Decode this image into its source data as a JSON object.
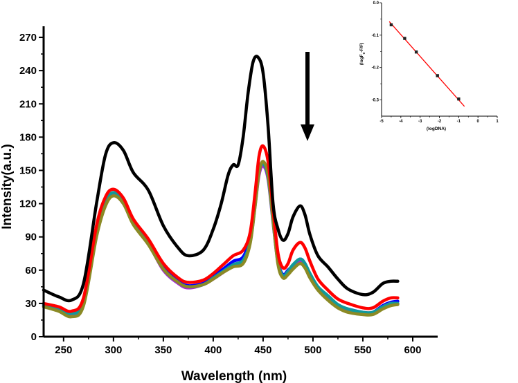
{
  "chart_data": [
    {
      "type": "line",
      "title": "",
      "xlabel": "Wavelength (nm)",
      "ylabel": "Intensity(a.u.)",
      "xlim": [
        230,
        625
      ],
      "ylim": [
        0,
        280
      ],
      "xticks": [
        250,
        300,
        350,
        400,
        450,
        500,
        550,
        600
      ],
      "yticks": [
        0,
        30,
        60,
        90,
        120,
        150,
        180,
        210,
        240,
        270
      ],
      "grid": false,
      "legend": "none",
      "annotation": "downward arrow near 490 nm indicating decreasing intensity",
      "series": [
        {
          "name": "black",
          "color": "#000000",
          "x": [
            230,
            245,
            258,
            270,
            283,
            292,
            300,
            310,
            320,
            335,
            350,
            365,
            375,
            390,
            400,
            408,
            415,
            420,
            425,
            430,
            435,
            440,
            445,
            450,
            455,
            460,
            465,
            470,
            475,
            480,
            487,
            492,
            497,
            505,
            515,
            525,
            535,
            550,
            560,
            570,
            578,
            585
          ],
          "y": [
            42,
            36,
            33,
            48,
            120,
            164,
            175,
            168,
            148,
            132,
            100,
            80,
            73,
            78,
            97,
            120,
            146,
            155,
            155,
            180,
            220,
            248,
            252,
            238,
            190,
            120,
            97,
            87,
            93,
            108,
            118,
            110,
            92,
            73,
            63,
            52,
            43,
            38,
            40,
            48,
            50,
            50
          ]
        },
        {
          "name": "red",
          "color": "#ff0000",
          "x": [
            230,
            245,
            258,
            270,
            283,
            292,
            300,
            310,
            320,
            335,
            350,
            365,
            375,
            390,
            400,
            410,
            420,
            430,
            437,
            442,
            446,
            450,
            455,
            460,
            465,
            470,
            475,
            480,
            487,
            492,
            497,
            505,
            515,
            525,
            535,
            550,
            560,
            570,
            578,
            585
          ],
          "y": [
            30,
            27,
            23,
            35,
            100,
            126,
            133,
            125,
            106,
            88,
            66,
            53,
            49,
            51,
            57,
            65,
            73,
            78,
            94,
            130,
            163,
            172,
            158,
            115,
            75,
            62,
            66,
            78,
            85,
            80,
            68,
            52,
            42,
            34,
            30,
            26,
            26,
            32,
            35,
            35
          ]
        },
        {
          "name": "blue",
          "color": "#0000ff",
          "x": [
            230,
            245,
            258,
            270,
            283,
            292,
            300,
            310,
            320,
            335,
            350,
            365,
            375,
            390,
            400,
            410,
            420,
            430,
            437,
            442,
            446,
            450,
            455,
            460,
            465,
            470,
            475,
            480,
            487,
            492,
            497,
            505,
            515,
            525,
            535,
            550,
            560,
            570,
            578,
            585
          ],
          "y": [
            28,
            25,
            21,
            32,
            95,
            122,
            129,
            122,
            104,
            86,
            63,
            50,
            46,
            48,
            54,
            61,
            68,
            72,
            90,
            125,
            150,
            157,
            145,
            106,
            68,
            56,
            60,
            64,
            70,
            66,
            56,
            44,
            36,
            28,
            25,
            22,
            22,
            28,
            31,
            32
          ]
        },
        {
          "name": "purple",
          "color": "#aa22dd",
          "x": [
            230,
            245,
            258,
            270,
            283,
            292,
            300,
            310,
            320,
            335,
            350,
            365,
            375,
            390,
            400,
            410,
            420,
            430,
            437,
            442,
            446,
            450,
            455,
            460,
            465,
            470,
            475,
            480,
            487,
            492,
            497,
            505,
            515,
            525,
            535,
            550,
            560,
            570,
            578,
            585
          ],
          "y": [
            27,
            24,
            20,
            30,
            92,
            120,
            128,
            120,
            102,
            84,
            60,
            48,
            44,
            47,
            52,
            58,
            64,
            68,
            85,
            118,
            146,
            154,
            142,
            103,
            66,
            54,
            58,
            63,
            68,
            65,
            55,
            43,
            34,
            26,
            23,
            20,
            21,
            27,
            30,
            30
          ]
        },
        {
          "name": "teal",
          "color": "#119999",
          "x": [
            230,
            245,
            258,
            270,
            283,
            292,
            300,
            310,
            320,
            335,
            350,
            365,
            375,
            390,
            400,
            410,
            420,
            430,
            437,
            442,
            446,
            450,
            455,
            460,
            465,
            470,
            475,
            480,
            487,
            492,
            497,
            505,
            515,
            525,
            535,
            550,
            560,
            570,
            578,
            585
          ],
          "y": [
            29,
            26,
            21,
            31,
            94,
            121,
            130,
            122,
            103,
            85,
            61,
            49,
            45,
            47,
            53,
            59,
            65,
            69,
            86,
            120,
            149,
            156,
            144,
            104,
            67,
            55,
            59,
            65,
            70,
            66,
            57,
            45,
            37,
            29,
            25,
            22,
            22,
            27,
            30,
            30
          ]
        },
        {
          "name": "olive",
          "color": "#8b8a25",
          "x": [
            230,
            245,
            258,
            270,
            283,
            292,
            300,
            310,
            320,
            335,
            350,
            365,
            375,
            390,
            400,
            410,
            420,
            430,
            437,
            442,
            446,
            450,
            455,
            460,
            465,
            470,
            475,
            480,
            487,
            492,
            497,
            505,
            515,
            525,
            535,
            550,
            560,
            570,
            578,
            585
          ],
          "y": [
            27,
            23,
            18,
            28,
            90,
            118,
            127,
            120,
            101,
            83,
            61,
            49,
            45,
            47,
            52,
            58,
            63,
            66,
            84,
            118,
            148,
            158,
            146,
            105,
            65,
            53,
            56,
            61,
            66,
            62,
            53,
            42,
            33,
            26,
            22,
            20,
            20,
            25,
            28,
            29
          ]
        }
      ]
    },
    {
      "type": "scatter",
      "title": "",
      "xlabel": "(logDNA)",
      "ylabel": "(logF0-F/F)",
      "xlim": [
        -5,
        1
      ],
      "ylim": [
        -0.35,
        0.0
      ],
      "xticks": [
        -5,
        -4,
        -3,
        -2,
        -1,
        0,
        1
      ],
      "xtick_labels": [
        "-5",
        "-4",
        "-3",
        "-2",
        "-1",
        "0",
        "1"
      ],
      "yticks": [
        0.0,
        -0.1,
        -0.2,
        -0.3
      ],
      "ytick_labels": [
        "0.0",
        "-0.1",
        "-0.2",
        "-0.3"
      ],
      "yminor": [
        -0.05,
        -0.15,
        -0.25
      ],
      "grid": false,
      "legend": "none",
      "points": {
        "x": [
          -4.5,
          -3.8,
          -3.2,
          -2.1,
          -1.0
        ],
        "y": [
          -0.068,
          -0.11,
          -0.152,
          -0.225,
          -0.297
        ]
      },
      "fit_line": {
        "color": "#ff0000",
        "x": [
          -4.6,
          -0.7
        ],
        "y": [
          -0.058,
          -0.32
        ]
      }
    }
  ]
}
